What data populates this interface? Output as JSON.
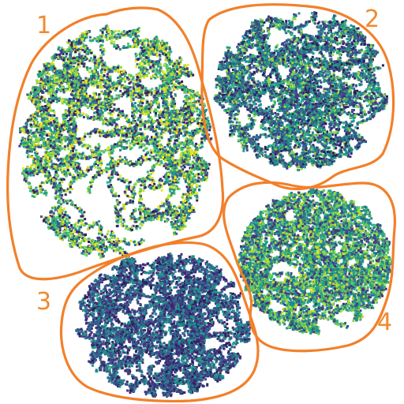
{
  "regions": [
    {
      "id": "region-1",
      "label": "1",
      "colors": [
        "#f0e51a",
        "#c6df2a",
        "#8fd548",
        "#5bc66a",
        "#2fb37f",
        "#1f9e89",
        "#2b7f8e",
        "#3b5d8c",
        "#453781",
        "#3a1c64"
      ],
      "density": 1.0
    },
    {
      "id": "region-2",
      "label": "2",
      "colors": [
        "#2fb37f",
        "#1f9e89",
        "#26868e",
        "#2b728e",
        "#335e8d",
        "#3e4989",
        "#46327e",
        "#2c1f5c",
        "#8fd548"
      ],
      "density": 0.9
    },
    {
      "id": "region-3",
      "label": "3",
      "colors": [
        "#26868e",
        "#2b728e",
        "#335e8d",
        "#3e4989",
        "#46327e",
        "#482576",
        "#2c1f5c",
        "#1f9e89"
      ],
      "density": 0.85
    },
    {
      "id": "region-4",
      "label": "4",
      "colors": [
        "#8fd548",
        "#5bc66a",
        "#2fb37f",
        "#1f9e89",
        "#26868e",
        "#2b728e",
        "#3e4989",
        "#46327e",
        "#c6df2a"
      ],
      "density": 0.95
    }
  ],
  "palette": {
    "outline": "#f2802a",
    "label": "#f08a2e",
    "background": "#ffffff"
  }
}
